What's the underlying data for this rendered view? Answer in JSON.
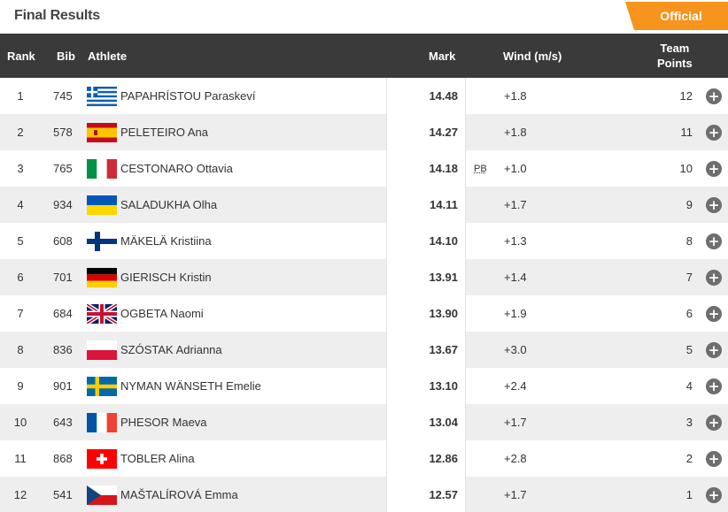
{
  "header": {
    "title": "Final Results",
    "status_badge": "Official"
  },
  "columns": {
    "rank": "Rank",
    "bib": "Bib",
    "athlete": "Athlete",
    "mark": "Mark",
    "wind": "Wind (m/s)",
    "team_points_line1": "Team",
    "team_points_line2": "Points"
  },
  "results": [
    {
      "rank": "1",
      "bib": "745",
      "flag": "greece-flag-icon",
      "athlete": "PAPAHRÍSTOU Paraskeví",
      "mark": "14.48",
      "note": "",
      "wind": "+1.8",
      "points": "12"
    },
    {
      "rank": "2",
      "bib": "578",
      "flag": "spain-flag-icon",
      "athlete": "PELETEIRO Ana",
      "mark": "14.27",
      "note": "",
      "wind": "+1.8",
      "points": "11"
    },
    {
      "rank": "3",
      "bib": "765",
      "flag": "italy-flag-icon",
      "athlete": "CESTONARO Ottavia",
      "mark": "14.18",
      "note": "PB",
      "wind": "+1.0",
      "points": "10"
    },
    {
      "rank": "4",
      "bib": "934",
      "flag": "ukraine-flag-icon",
      "athlete": "SALADUKHA Olha",
      "mark": "14.11",
      "note": "",
      "wind": "+1.7",
      "points": "9"
    },
    {
      "rank": "5",
      "bib": "608",
      "flag": "finland-flag-icon",
      "athlete": "MÄKELÄ Kristiina",
      "mark": "14.10",
      "note": "",
      "wind": "+1.3",
      "points": "8"
    },
    {
      "rank": "6",
      "bib": "701",
      "flag": "germany-flag-icon",
      "athlete": "GIERISCH Kristin",
      "mark": "13.91",
      "note": "",
      "wind": "+1.4",
      "points": "7"
    },
    {
      "rank": "7",
      "bib": "684",
      "flag": "uk-flag-icon",
      "athlete": "OGBETA Naomi",
      "mark": "13.90",
      "note": "",
      "wind": "+1.9",
      "points": "6"
    },
    {
      "rank": "8",
      "bib": "836",
      "flag": "poland-flag-icon",
      "athlete": "SZÓSTAK Adrianna",
      "mark": "13.67",
      "note": "",
      "wind": "+3.0",
      "points": "5"
    },
    {
      "rank": "9",
      "bib": "901",
      "flag": "sweden-flag-icon",
      "athlete": "NYMAN WÄNSETH Emelie",
      "mark": "13.10",
      "note": "",
      "wind": "+2.4",
      "points": "4"
    },
    {
      "rank": "10",
      "bib": "643",
      "flag": "france-flag-icon",
      "athlete": "PHESOR Maeva",
      "mark": "13.04",
      "note": "",
      "wind": "+1.7",
      "points": "3"
    },
    {
      "rank": "11",
      "bib": "868",
      "flag": "switzerland-flag-icon",
      "athlete": "TOBLER Alina",
      "mark": "12.86",
      "note": "",
      "wind": "+2.8",
      "points": "2"
    },
    {
      "rank": "12",
      "bib": "541",
      "flag": "czech-flag-icon",
      "athlete": "MAŠTALÍROVÁ Emma",
      "mark": "12.57",
      "note": "",
      "wind": "+1.7",
      "points": "1"
    }
  ],
  "expand_icon": "plus-circle-icon",
  "colors": {
    "accent": "#f7941d",
    "header_bg": "#3a3a3a",
    "row_alt": "#eeeeee"
  }
}
